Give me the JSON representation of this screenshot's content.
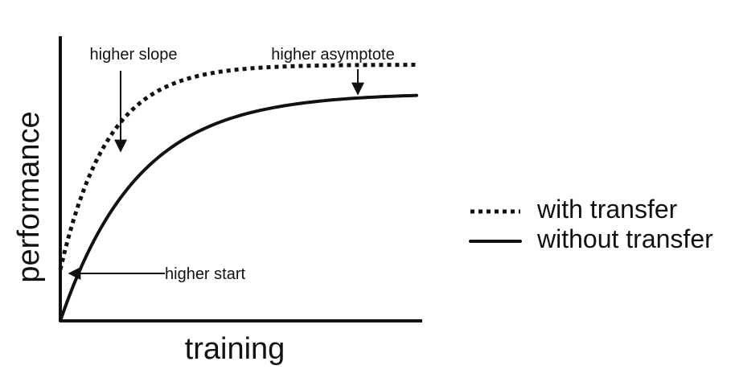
{
  "chart_data": {
    "type": "line",
    "title": "",
    "xlabel": "training",
    "ylabel": "performance",
    "xlim": [
      0,
      1
    ],
    "ylim": [
      0,
      1
    ],
    "grid": false,
    "axis_ticks": false,
    "series": [
      {
        "name": "with transfer",
        "style": "dotted",
        "color": "#111111",
        "function": "asymptotic",
        "start": 0.18,
        "asymptote": 0.9,
        "rate": 7.5
      },
      {
        "name": "without transfer",
        "style": "solid",
        "color": "#111111",
        "function": "asymptotic",
        "start": 0.0,
        "asymptote": 0.8,
        "rate": 4.6
      }
    ],
    "annotations": [
      {
        "id": "slope",
        "text": "higher slope",
        "target": "with transfer slope"
      },
      {
        "id": "asymptote",
        "text": "higher asymptote",
        "target": "with transfer asymptote"
      },
      {
        "id": "start",
        "text": "higher start",
        "target": "with transfer start"
      }
    ],
    "legend": {
      "placement": "right",
      "entries": [
        {
          "label": "with transfer",
          "style": "dotted"
        },
        {
          "label": "without transfer",
          "style": "solid"
        }
      ]
    }
  }
}
